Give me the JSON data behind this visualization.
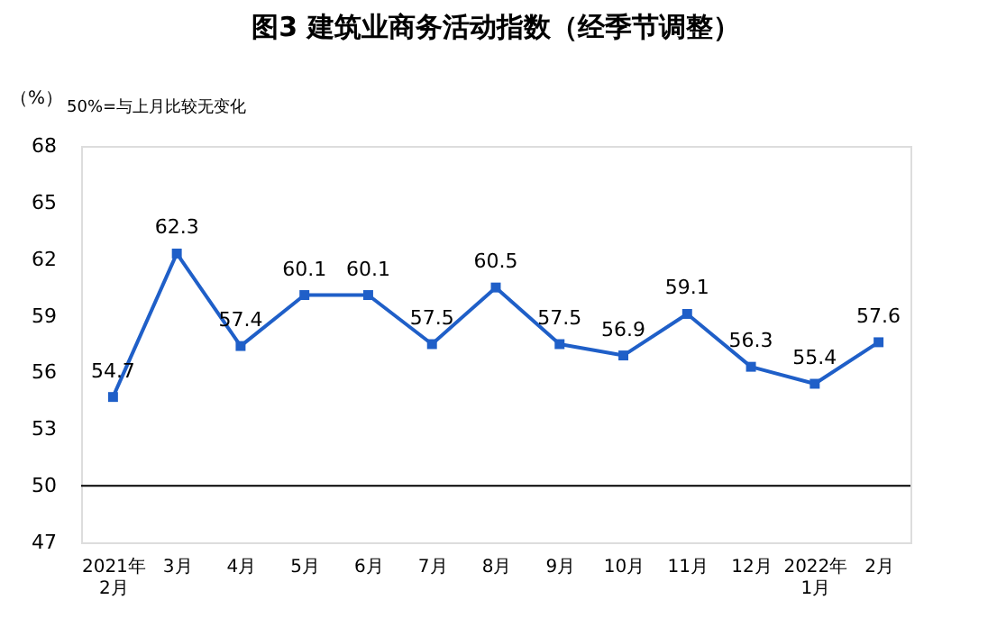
{
  "chart_data": {
    "type": "line",
    "title": "图3  建筑业商务活动指数（经季节调整）",
    "ylabel": "（%）",
    "annotations": [
      "50%=与上月比较无变化"
    ],
    "categories": [
      "2021年\n2月",
      "3月",
      "4月",
      "5月",
      "6月",
      "7月",
      "8月",
      "9月",
      "10月",
      "11月",
      "12月",
      "2022年\n1月",
      "2月"
    ],
    "series": [
      {
        "color": "#1f5fc8",
        "values": [
          54.7,
          62.3,
          57.4,
          60.1,
          60.1,
          57.5,
          60.5,
          57.5,
          56.9,
          59.1,
          56.3,
          55.4,
          57.6
        ]
      }
    ],
    "ylim": [
      47,
      68
    ],
    "yticks": [
      47,
      50,
      53,
      56,
      59,
      62,
      65,
      68
    ],
    "ref_lines": [
      {
        "axis": "y",
        "value": 50,
        "color": "#000000"
      }
    ],
    "data_labels": true,
    "marker": "square",
    "line_style": "solid",
    "grid": false
  }
}
